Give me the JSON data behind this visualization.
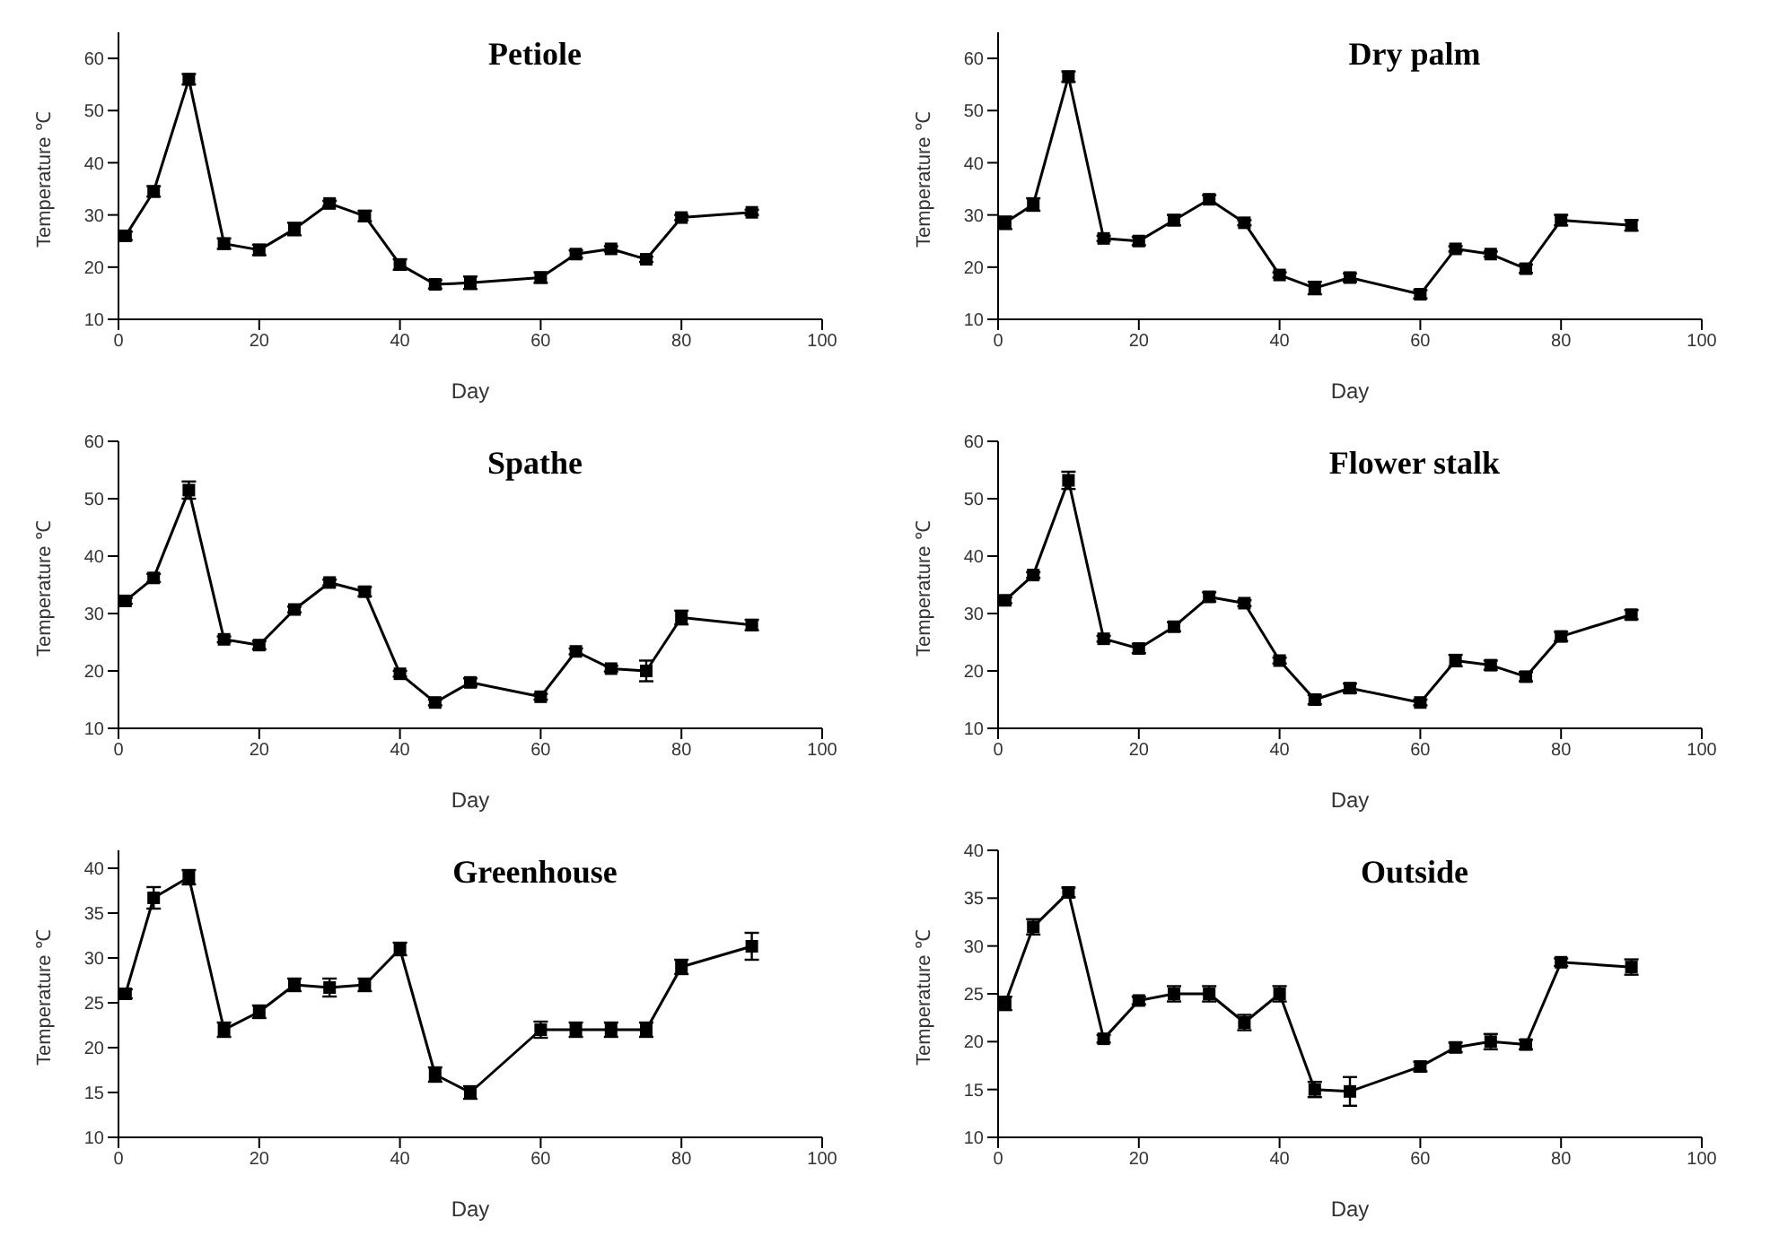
{
  "chart_data": [
    {
      "type": "line",
      "title": "Petiole",
      "xlabel": "Day",
      "ylabel": "Temperature ℃",
      "x": [
        1,
        5,
        10,
        15,
        20,
        25,
        30,
        35,
        40,
        45,
        50,
        60,
        65,
        70,
        75,
        80,
        90
      ],
      "series": [
        {
          "color": "#000000",
          "values": [
            26,
            34.5,
            56,
            24.5,
            23.3,
            27.3,
            32.2,
            29.8,
            20.5,
            16.7,
            17,
            18,
            22.5,
            23.5,
            21.5,
            29.5,
            30.5
          ],
          "errors": [
            0.8,
            1,
            1,
            1,
            1,
            1.2,
            0.5,
            1,
            1,
            0.8,
            1.2,
            1,
            0.7,
            0.5,
            0.5,
            0.5,
            0.5
          ]
        }
      ],
      "xlim": [
        0,
        100
      ],
      "xticks": [
        0,
        20,
        40,
        60,
        80,
        100
      ],
      "ylim": [
        10,
        65
      ],
      "yticks": [
        10,
        20,
        30,
        40,
        50,
        60
      ],
      "marker": "square",
      "line_style": "solid",
      "grid": false,
      "legend": false
    },
    {
      "type": "line",
      "title": "Dry palm",
      "xlabel": "Day",
      "ylabel": "Temperature ℃",
      "x": [
        1,
        5,
        10,
        15,
        20,
        25,
        30,
        35,
        40,
        45,
        50,
        60,
        65,
        70,
        75,
        80,
        90
      ],
      "series": [
        {
          "color": "#000000",
          "values": [
            28.5,
            32,
            56.5,
            25.5,
            25,
            29,
            33,
            28.5,
            18.5,
            16,
            18,
            14.8,
            23.5,
            22.5,
            19.7,
            29,
            28
          ],
          "errors": [
            1.2,
            1.2,
            1,
            0.5,
            0.8,
            1,
            0.8,
            0.5,
            0.5,
            1.2,
            0.8,
            0.8,
            0.5,
            0.5,
            0.8,
            1,
            1
          ]
        }
      ],
      "xlim": [
        0,
        100
      ],
      "xticks": [
        0,
        20,
        40,
        60,
        80,
        100
      ],
      "ylim": [
        10,
        65
      ],
      "yticks": [
        10,
        20,
        30,
        40,
        50,
        60
      ],
      "marker": "square",
      "line_style": "solid",
      "grid": false,
      "legend": false
    },
    {
      "type": "line",
      "title": "Spathe",
      "xlabel": "Day",
      "ylabel": "Temperature ℃",
      "x": [
        1,
        5,
        10,
        15,
        20,
        25,
        30,
        35,
        40,
        45,
        50,
        60,
        65,
        70,
        75,
        80,
        90
      ],
      "series": [
        {
          "color": "#000000",
          "values": [
            32.2,
            36.2,
            51.5,
            25.5,
            24.5,
            30.7,
            35.4,
            33.8,
            19.5,
            14.5,
            18,
            15.5,
            23.4,
            20.4,
            20,
            29.3,
            28
          ],
          "errors": [
            0.5,
            0.7,
            1.5,
            0.5,
            0.7,
            0.5,
            0.5,
            0.8,
            0.5,
            0.5,
            0.7,
            0.5,
            0.5,
            0.5,
            1.8,
            1.2,
            0.9
          ]
        }
      ],
      "xlim": [
        0,
        100
      ],
      "xticks": [
        0,
        20,
        40,
        60,
        80,
        100
      ],
      "ylim": [
        10,
        60
      ],
      "yticks": [
        10,
        20,
        30,
        40,
        50,
        60
      ],
      "marker": "square",
      "line_style": "solid",
      "grid": false,
      "legend": false
    },
    {
      "type": "line",
      "title": "Flower stalk",
      "xlabel": "Day",
      "ylabel": "Temperature ℃",
      "x": [
        1,
        5,
        10,
        15,
        20,
        25,
        30,
        35,
        40,
        45,
        50,
        60,
        65,
        70,
        75,
        80,
        90
      ],
      "series": [
        {
          "color": "#000000",
          "values": [
            32.3,
            36.7,
            53.2,
            25.6,
            23.9,
            27.7,
            32.9,
            31.8,
            21.8,
            15,
            17,
            14.5,
            21.8,
            21,
            19,
            26,
            29.8
          ],
          "errors": [
            0.5,
            0.5,
            1.5,
            0.5,
            0.8,
            0.8,
            0.8,
            0.5,
            0.5,
            0.8,
            0.8,
            0.5,
            1,
            0.8,
            0.8,
            0.8,
            0.8
          ]
        }
      ],
      "xlim": [
        0,
        100
      ],
      "xticks": [
        0,
        20,
        40,
        60,
        80,
        100
      ],
      "ylim": [
        10,
        60
      ],
      "yticks": [
        10,
        20,
        30,
        40,
        50,
        60
      ],
      "marker": "square",
      "line_style": "solid",
      "grid": false,
      "legend": false
    },
    {
      "type": "line",
      "title": "Greenhouse",
      "xlabel": "Day",
      "ylabel": "Temperature ℃",
      "x": [
        1,
        5,
        10,
        15,
        20,
        25,
        30,
        35,
        40,
        45,
        50,
        60,
        65,
        70,
        75,
        80,
        90
      ],
      "series": [
        {
          "color": "#000000",
          "values": [
            26,
            36.7,
            39,
            22,
            24,
            27,
            26.7,
            27,
            31,
            17,
            15,
            22,
            22,
            22,
            22,
            29,
            31.3
          ],
          "errors": [
            0.5,
            1.2,
            0.8,
            0.8,
            0.7,
            0.7,
            1,
            0.7,
            0.7,
            0.8,
            0.7,
            0.9,
            0.8,
            0.8,
            0.8,
            0.8,
            1.5
          ]
        }
      ],
      "xlim": [
        0,
        100
      ],
      "xticks": [
        0,
        20,
        40,
        60,
        80,
        100
      ],
      "ylim": [
        10,
        42
      ],
      "yticks": [
        10,
        15,
        20,
        25,
        30,
        35,
        40
      ],
      "marker": "square",
      "line_style": "solid",
      "grid": false,
      "legend": false
    },
    {
      "type": "line",
      "title": "Outside",
      "xlabel": "Day",
      "ylabel": "Temperature ℃",
      "x": [
        1,
        5,
        10,
        15,
        20,
        25,
        30,
        35,
        40,
        45,
        50,
        60,
        65,
        70,
        75,
        80,
        90
      ],
      "series": [
        {
          "color": "#000000",
          "values": [
            24,
            32,
            35.6,
            20.3,
            24.3,
            25,
            25,
            22,
            25,
            15,
            14.8,
            17.4,
            19.4,
            20,
            19.7,
            28.3,
            27.8
          ],
          "errors": [
            0.7,
            0.8,
            0.5,
            0.4,
            0.4,
            0.8,
            0.8,
            0.8,
            0.8,
            0.8,
            1.5,
            0.5,
            0.5,
            0.8,
            0.5,
            0.4,
            0.8
          ]
        }
      ],
      "xlim": [
        0,
        100
      ],
      "xticks": [
        0,
        20,
        40,
        60,
        80,
        100
      ],
      "ylim": [
        10,
        40
      ],
      "yticks": [
        10,
        15,
        20,
        25,
        30,
        35,
        40
      ],
      "marker": "square",
      "line_style": "solid",
      "grid": false,
      "legend": false
    }
  ]
}
